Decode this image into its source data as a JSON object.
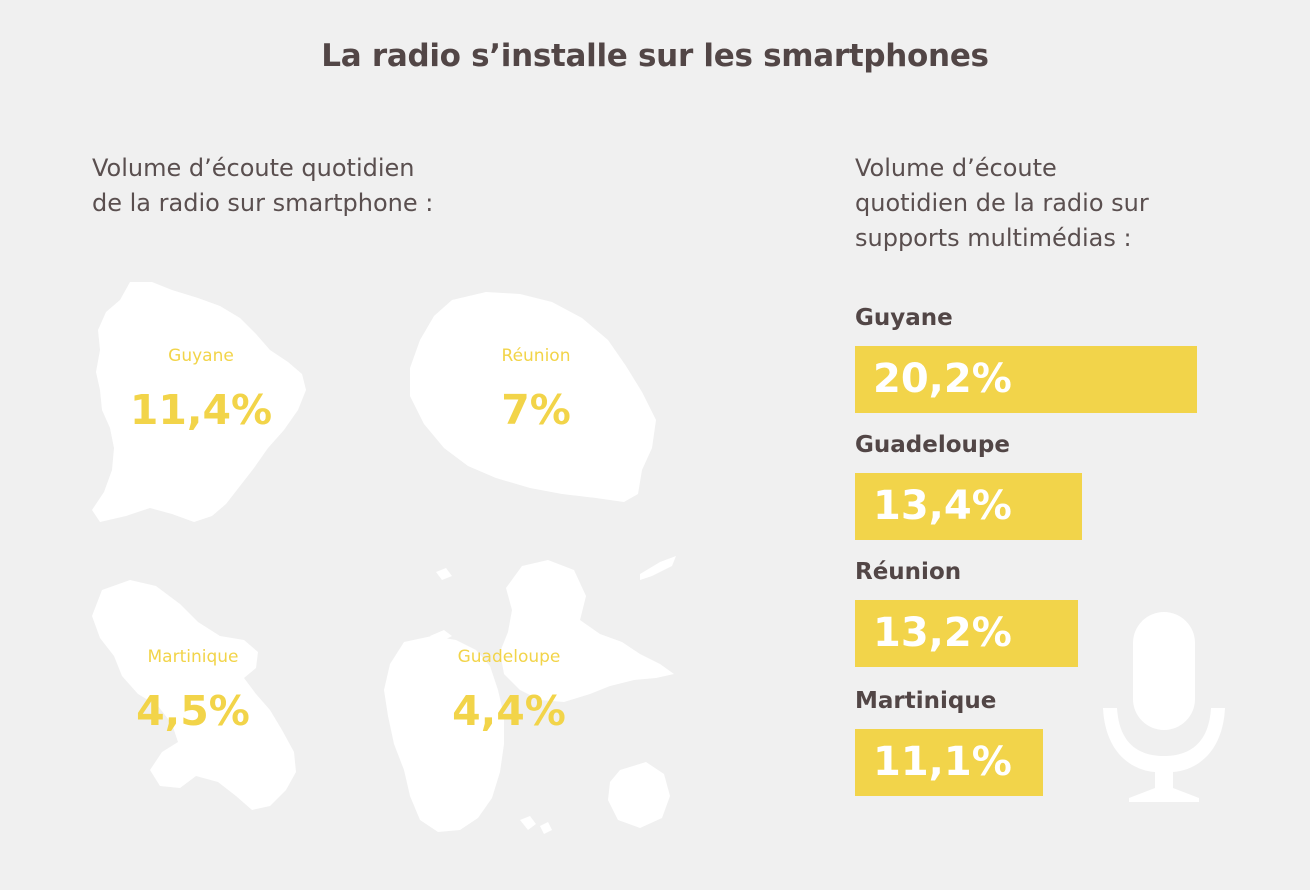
{
  "title": "La radio s’installe sur les smartphones",
  "left_subtitle": [
    "Volume d’écoute quotidien",
    "de la radio sur smartphone :"
  ],
  "right_subtitle": [
    "Volume d’écoute",
    "quotidien de la radio sur",
    "supports multimédias :"
  ],
  "icons": {
    "microphone": "microphone-icon"
  },
  "colors": {
    "background": "#f0f0f0",
    "accent": "#f2d44a",
    "text": "#524646",
    "map": "#ffffff"
  },
  "chart_data": [
    {
      "type": "map",
      "regions": [
        {
          "name": "Guyane",
          "value": 11.4,
          "label": "11,4%"
        },
        {
          "name": "Réunion",
          "value": 7,
          "label": "7%"
        },
        {
          "name": "Martinique",
          "value": 4.5,
          "label": "4,5%"
        },
        {
          "name": "Guadeloupe",
          "value": 4.4,
          "label": "4,4%"
        }
      ]
    },
    {
      "type": "bar",
      "orientation": "horizontal",
      "categories": [
        "Guyane",
        "Guadeloupe",
        "Réunion",
        "Martinique"
      ],
      "values": [
        20.2,
        13.4,
        13.2,
        11.1
      ],
      "value_labels": [
        "20,2%",
        "13,4%",
        "13,2%",
        "11,1%"
      ]
    }
  ]
}
